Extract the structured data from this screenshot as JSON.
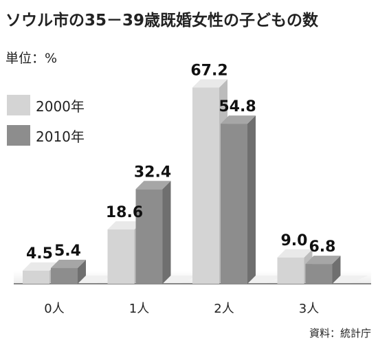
{
  "chart_data": {
    "type": "bar",
    "title": "ソウル市の35－39歳既婚女性の子どもの数",
    "unit_label": "単位：%",
    "source": "資料：統計庁",
    "categories": [
      "0人",
      "1人",
      "2人",
      "3人"
    ],
    "series": [
      {
        "name": "2000年",
        "values": [
          4.5,
          18.6,
          67.2,
          9.0
        ],
        "color": "#d4d4d4"
      },
      {
        "name": "2010年",
        "values": [
          5.4,
          32.4,
          54.8,
          6.8
        ],
        "color": "#8d8d8d"
      }
    ],
    "value_labels": [
      [
        "4.5",
        "18.6",
        "67.2",
        "9.0"
      ],
      [
        "5.4",
        "32.4",
        "54.8",
        "6.8"
      ]
    ],
    "ylim": [
      0,
      70
    ],
    "legend": "top-left",
    "grid": false,
    "style": "3d"
  }
}
